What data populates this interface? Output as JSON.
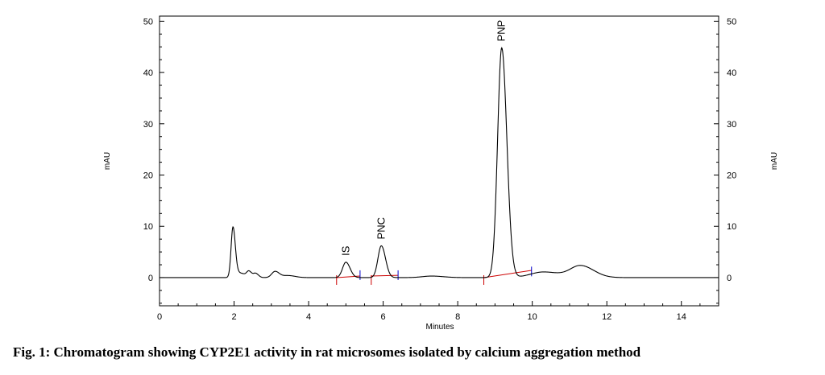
{
  "caption": "Fig. 1: Chromatogram showing CYP2E1 activity in rat microsomes isolated by calcium aggregation method",
  "chart_data": {
    "type": "line",
    "xlabel": "Minutes",
    "ylabel_left": "mAU",
    "ylabel_right": "mAU",
    "xlim": [
      0,
      15
    ],
    "ylim": [
      -5.5,
      51
    ],
    "x_ticks": [
      0,
      2,
      4,
      6,
      8,
      10,
      12,
      14
    ],
    "y_ticks": [
      0,
      10,
      20,
      30,
      40,
      50
    ],
    "line_color": "#000000",
    "baseline_color": "#cc0000",
    "start_marker_color": "#cc0000",
    "end_marker_color": "#0000cc",
    "baseline": 0,
    "peaks": [
      {
        "label": "",
        "t": 1.97,
        "height": 9.6,
        "width": 0.05
      },
      {
        "label": "",
        "t": 2.15,
        "height": 0.9,
        "width": 0.12
      },
      {
        "label": "",
        "t": 2.4,
        "height": 1.1,
        "width": 0.06
      },
      {
        "label": "",
        "t": 2.58,
        "height": 0.8,
        "width": 0.06
      },
      {
        "label": "",
        "t": 3.1,
        "height": 1.2,
        "width": 0.09
      },
      {
        "label": "",
        "t": 3.45,
        "height": 0.4,
        "width": 0.15
      },
      {
        "label": "IS",
        "t": 5.0,
        "height": 3.0,
        "width": 0.09
      },
      {
        "label": "PNC",
        "t": 5.95,
        "height": 6.2,
        "width": 0.09
      },
      {
        "label": "",
        "t": 7.3,
        "height": 0.3,
        "width": 0.25
      },
      {
        "label": "PNP",
        "t": 9.18,
        "height": 44.8,
        "width": 0.11
      },
      {
        "label": "",
        "t": 10.3,
        "height": 1.1,
        "width": 0.35
      },
      {
        "label": "",
        "t": 11.3,
        "height": 2.3,
        "width": 0.28
      }
    ],
    "integration_baselines": [
      {
        "x": [
          4.75,
          5.38
        ],
        "y": [
          0.0,
          0.3
        ]
      },
      {
        "x": [
          5.68,
          6.4
        ],
        "y": [
          0.3,
          0.45
        ]
      },
      {
        "x": [
          8.7,
          9.98
        ],
        "y": [
          0.0,
          1.4
        ]
      }
    ],
    "peak_start_markers": [
      4.75,
      5.68,
      8.7
    ],
    "peak_end_markers": [
      5.38,
      6.4,
      9.98
    ]
  }
}
